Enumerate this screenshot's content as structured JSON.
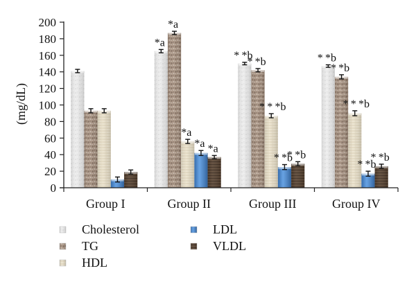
{
  "chart_data": {
    "type": "bar",
    "title": "",
    "xlabel": "",
    "ylabel": "(mg/dL)",
    "ylim": [
      0,
      200
    ],
    "yticks": [
      0,
      20,
      40,
      60,
      80,
      100,
      120,
      140,
      160,
      180,
      200
    ],
    "grid": false,
    "legend_position": "bottom",
    "categories": [
      "Group I",
      "Group II",
      "Group III",
      "Group IV"
    ],
    "series": [
      {
        "name": "Cholesterol",
        "color": "#e6e6e6",
        "values": [
          141,
          165,
          150,
          147
        ],
        "errors": [
          2,
          2,
          1.5,
          1.5
        ],
        "annotations": [
          "",
          "*a",
          "**b",
          "**b"
        ]
      },
      {
        "name": "TG",
        "color": "#a8968a",
        "values": [
          93,
          187,
          142,
          134
        ],
        "errors": [
          2.5,
          2,
          2,
          2.5
        ],
        "annotations": [
          "",
          "*a",
          "**b",
          "**b"
        ]
      },
      {
        "name": "HDL",
        "color": "#e8dfc8",
        "values": [
          93,
          56,
          87,
          90
        ],
        "errors": [
          2.5,
          2.5,
          2.5,
          3
        ],
        "annotations": [
          "",
          "*a",
          "***b",
          "***b"
        ]
      },
      {
        "name": "LDL",
        "color": "#4a8ad0",
        "values": [
          10,
          42,
          25,
          17
        ],
        "errors": [
          3,
          3,
          3,
          3
        ],
        "annotations": [
          "",
          "*a",
          "**b",
          "**b"
        ]
      },
      {
        "name": "VLDL",
        "color": "#4e3a2c",
        "values": [
          19,
          37,
          29,
          26
        ],
        "errors": [
          2.5,
          2,
          2.5,
          2.5
        ],
        "annotations": [
          "",
          "*a",
          "**b",
          "**b"
        ]
      }
    ]
  }
}
